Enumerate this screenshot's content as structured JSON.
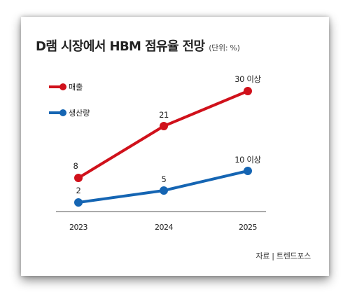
{
  "header": {
    "title": "D램 시장에서 HBM 점유율 전망",
    "unit": "(단위: %)"
  },
  "footer": {
    "source": "자료 | 트렌드포스"
  },
  "colors": {
    "sales": "#d0111b",
    "production": "#1565b3",
    "axis": "#555555"
  },
  "chart_data": {
    "type": "line",
    "title": "D램 시장에서 HBM 점유율 전망",
    "unit": "(단위: %)",
    "xlabel": "",
    "ylabel": "",
    "categories": [
      "2023",
      "2024",
      "2025"
    ],
    "ylim": [
      0,
      32
    ],
    "grid": false,
    "legend_position": "top-left",
    "series": [
      {
        "name": "매출",
        "color": "#d0111b",
        "values": [
          8,
          21,
          30
        ],
        "labels": [
          "8",
          "21",
          "30 이상"
        ]
      },
      {
        "name": "생산량",
        "color": "#1565b3",
        "values": [
          2,
          5,
          10
        ],
        "labels": [
          "2",
          "5",
          "10 이상"
        ]
      }
    ]
  }
}
